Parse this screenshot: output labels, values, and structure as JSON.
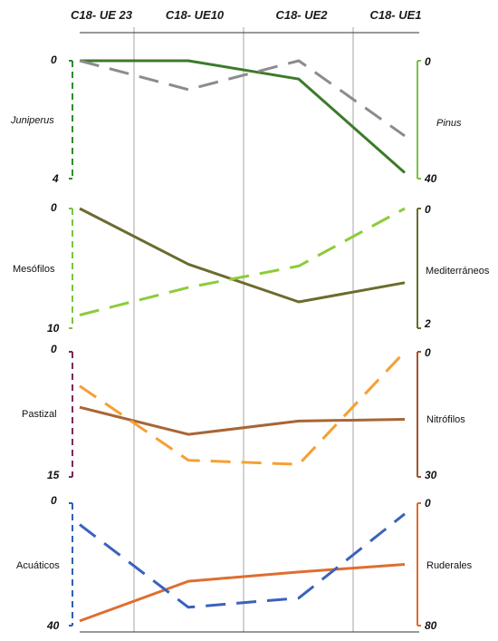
{
  "chart_data": {
    "type": "line",
    "columns": [
      "C18- UE 23",
      "C18- UE10",
      "C18- UE2",
      "C18- UE1"
    ],
    "panels": [
      {
        "left_axis": {
          "label": "Juniperus",
          "italic": true,
          "top": "0",
          "bottom": "4",
          "range": [
            0,
            4
          ],
          "color": "#2e8b2e"
        },
        "right_axis": {
          "label": "Pinus",
          "italic": true,
          "top": "0",
          "bottom": "40",
          "range": [
            0,
            40
          ],
          "color": "#7cc242"
        },
        "series": [
          {
            "axis": "right",
            "color": "#3d7a2a",
            "dashed": false,
            "values": [
              0,
              0,
              6.2,
              38
            ]
          },
          {
            "axis": "left",
            "color": "#8c8c8c",
            "dashed": true,
            "values": [
              0,
              0.98,
              0,
              2.55
            ]
          }
        ]
      },
      {
        "left_axis": {
          "label": "Mesófilos",
          "italic": false,
          "top": "0",
          "bottom": "10",
          "range": [
            0,
            10
          ],
          "color": "#7cc242"
        },
        "right_axis": {
          "label": "Mediterráneos",
          "italic": false,
          "top": "0",
          "bottom": "2",
          "range": [
            0,
            2
          ],
          "color": "#6b6b2f"
        },
        "series": [
          {
            "axis": "right",
            "color": "#6b6b2f",
            "dashed": false,
            "values": [
              0,
              0.93,
              1.56,
              1.24
            ]
          },
          {
            "axis": "left",
            "color": "#8ccc3a",
            "dashed": true,
            "values": [
              8.9,
              6.6,
              4.8,
              0
            ]
          }
        ]
      },
      {
        "left_axis": {
          "label": "Pastizal",
          "italic": false,
          "top": "0",
          "bottom": "15",
          "range": [
            0,
            15
          ],
          "color": "#7a2a5a"
        },
        "right_axis": {
          "label": "Nitrófilos",
          "italic": false,
          "top": "0",
          "bottom": "30",
          "range": [
            0,
            30
          ],
          "color": "#a0522d"
        },
        "series": [
          {
            "axis": "right",
            "color": "#a86535",
            "dashed": false,
            "values": [
              13.3,
              19.8,
              16.6,
              16.2
            ]
          },
          {
            "axis": "left",
            "color": "#f5a033",
            "dashed": true,
            "values": [
              4.1,
              13.0,
              13.5,
              0
            ]
          }
        ]
      },
      {
        "left_axis": {
          "label": "Acuáticos",
          "italic": false,
          "top": "0",
          "bottom": "40",
          "range": [
            0,
            40
          ],
          "color": "#2f5fb5"
        },
        "right_axis": {
          "label": "Ruderales",
          "italic": false,
          "top": "0",
          "bottom": "80",
          "range": [
            0,
            80
          ],
          "color": "#e06a2a"
        },
        "series": [
          {
            "axis": "right",
            "color": "#de6e30",
            "dashed": false,
            "values": [
              77,
              51,
              45,
              40
            ]
          },
          {
            "axis": "left",
            "color": "#3a62bd",
            "dashed": true,
            "values": [
              7,
              34,
              31,
              3.5
            ]
          }
        ]
      }
    ]
  },
  "colors": {
    "gridline": "#a6a6a6",
    "baseline": "#333333"
  }
}
